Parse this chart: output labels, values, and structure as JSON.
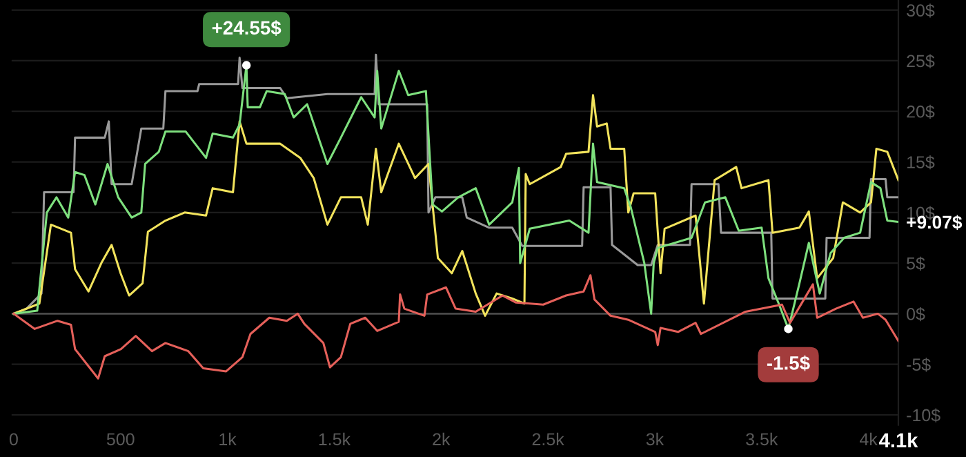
{
  "chart_data": {
    "type": "line",
    "xlim": [
      -10,
      4140
    ],
    "ylim": [
      -11,
      31
    ],
    "xticks": [
      0,
      500,
      {
        "value": 1000,
        "label": "1k"
      },
      {
        "value": 1500,
        "label": "1.5k"
      },
      {
        "value": 2000,
        "label": "2k"
      },
      {
        "value": 2500,
        "label": "2.5k"
      },
      {
        "value": 3000,
        "label": "3k"
      },
      {
        "value": 3500,
        "label": "3.5k"
      },
      {
        "value": 4000,
        "label": "4k"
      },
      {
        "value": 4140,
        "label": "4.1k"
      }
    ],
    "yticks": [
      {
        "value": -10,
        "label": "-10$"
      },
      {
        "value": -5,
        "label": "-5$"
      },
      {
        "value": 0,
        "label": "0$"
      },
      {
        "value": 5,
        "label": "5$"
      },
      {
        "value": 10,
        "label": "10$"
      },
      {
        "value": 15,
        "label": "15$"
      },
      {
        "value": 20,
        "label": "20$"
      },
      {
        "value": 25,
        "label": "25$"
      },
      {
        "value": 30,
        "label": "30$"
      },
      {
        "value": 9.07,
        "label": "+9.07$"
      }
    ],
    "grid": "y",
    "ref_lines": [
      {
        "axis": "y",
        "value": 0,
        "color": "#4a4a4a"
      }
    ],
    "annotations": [
      {
        "text": "+24.55$",
        "x": 1089,
        "y": 24.55
      },
      {
        "text": "-1.5$",
        "x": 3625,
        "y": -1.5
      }
    ],
    "series": [
      {
        "color": "#9a9a9a",
        "x": [
          0,
          60,
          130,
          142,
          280,
          287,
          426,
          445,
          458,
          552,
          597,
          700,
          710,
          860,
          868,
          1050,
          1057,
          1070,
          1247,
          1278,
          1468,
          1689,
          1695,
          1708,
          1935,
          1941,
          1973,
          2099,
          2120,
          2225,
          2333,
          2380,
          2660,
          2667,
          2793,
          2800,
          2920,
          2983,
          3014,
          3165,
          3172,
          3298,
          3310,
          3545,
          3551,
          3798,
          3804,
          4005,
          4012,
          4080,
          4088,
          4140
        ],
        "values": [
          0,
          0.5,
          2,
          12,
          12,
          17.4,
          17.4,
          19,
          12.8,
          12.8,
          18.3,
          18.3,
          22,
          22,
          22.7,
          22.7,
          25.3,
          22.3,
          22.3,
          21.3,
          21.7,
          21.7,
          25.6,
          20.7,
          20.7,
          10,
          11.5,
          11.5,
          9.5,
          8.5,
          8.5,
          6.7,
          6.7,
          12.5,
          12.5,
          6.8,
          4.8,
          4.8,
          6.8,
          6.8,
          12.8,
          12.8,
          8,
          8,
          1.5,
          1.5,
          7.5,
          7.5,
          13.3,
          13.3,
          11.5,
          11.5
        ]
      },
      {
        "color": "#f2e35c",
        "x": [
          0,
          120,
          174,
          268,
          287,
          350,
          410,
          458,
          500,
          540,
          603,
          628,
          710,
          800,
          900,
          931,
          1026,
          1057,
          1089,
          1247,
          1341,
          1404,
          1468,
          1531,
          1626,
          1657,
          1695,
          1720,
          1802,
          1878,
          1941,
          1985,
          2050,
          2099,
          2162,
          2206,
          2260,
          2333,
          2390,
          2396,
          2415,
          2560,
          2585,
          2690,
          2711,
          2730,
          2775,
          2793,
          2857,
          2876,
          2901,
          3002,
          3027,
          3046,
          3191,
          3230,
          3280,
          3381,
          3406,
          3532,
          3551,
          3677,
          3721,
          3760,
          3835,
          3880,
          3961,
          4012,
          4037,
          4088,
          4140
        ],
        "values": [
          0,
          1,
          8.8,
          8,
          4.4,
          2.2,
          5,
          6.8,
          4,
          1.8,
          3,
          8.1,
          9.2,
          10,
          9.7,
          12.4,
          12,
          19,
          16.8,
          16.8,
          15.4,
          13.4,
          8.8,
          11.5,
          11.5,
          8.8,
          16.3,
          12,
          16.8,
          13.4,
          14.8,
          5.5,
          4,
          6.2,
          2,
          -0.2,
          2,
          1.5,
          1,
          13.8,
          12.8,
          14.5,
          15.8,
          16,
          21.6,
          18.5,
          18.8,
          16.3,
          16.3,
          10,
          11.9,
          11.9,
          4,
          8.4,
          9.7,
          1,
          13.2,
          14.5,
          12.4,
          13.2,
          8,
          8.5,
          10.1,
          3.5,
          5.5,
          11,
          10,
          11,
          16.3,
          16,
          13.2
        ]
      },
      {
        "color": "#7ee07e",
        "x": [
          0,
          110,
          155,
          200,
          255,
          287,
          331,
          382,
          439,
          489,
          552,
          597,
          615,
          679,
          710,
          805,
          900,
          931,
          1026,
          1057,
          1089,
          1095,
          1152,
          1184,
          1268,
          1310,
          1373,
          1468,
          1531,
          1626,
          1689,
          1701,
          1720,
          1802,
          1846,
          1929,
          1960,
          2004,
          2080,
          2162,
          2225,
          2333,
          2364,
          2370,
          2415,
          2600,
          2690,
          2711,
          2730,
          2857,
          2888,
          2951,
          2983,
          2995,
          3014,
          3172,
          3235,
          3330,
          3393,
          3500,
          3532,
          3580,
          3625,
          3677,
          3721,
          3772,
          3823,
          3886,
          3961,
          4012,
          4056,
          4088,
          4140
        ],
        "values": [
          0,
          0.3,
          10,
          11.5,
          9.5,
          14,
          13.7,
          10.8,
          14.8,
          11.5,
          9.5,
          10,
          14.8,
          16,
          18,
          18,
          15.4,
          17.8,
          17.4,
          18.7,
          24.55,
          20.4,
          20.4,
          22,
          21.7,
          19.4,
          20.7,
          14.8,
          17.4,
          21.4,
          19.4,
          24,
          18.3,
          24,
          21.6,
          22,
          10.8,
          10.1,
          11.5,
          12.4,
          8.8,
          11,
          14.4,
          5,
          8.4,
          9.2,
          8,
          16.8,
          13,
          12.4,
          10.5,
          5,
          0,
          5,
          6.5,
          7.5,
          11,
          11.5,
          8.2,
          8.5,
          3.5,
          1,
          -1.5,
          3,
          7,
          2,
          6,
          7.5,
          8,
          13,
          12.4,
          9.2,
          9.07
        ]
      },
      {
        "color": "#e5605a",
        "x": [
          0,
          98,
          205,
          268,
          287,
          395,
          426,
          502,
          571,
          647,
          710,
          817,
          887,
          994,
          1070,
          1108,
          1196,
          1278,
          1329,
          1360,
          1449,
          1480,
          1531,
          1575,
          1645,
          1701,
          1802,
          1808,
          1828,
          1922,
          1935,
          2023,
          2068,
          2162,
          2288,
          2351,
          2478,
          2585,
          2667,
          2699,
          2718,
          2793,
          2876,
          3002,
          3014,
          3027,
          3109,
          3191,
          3216,
          3425,
          3595,
          3633,
          3740,
          3760,
          3848,
          3930,
          3974,
          4044,
          4080,
          4140
        ],
        "values": [
          0,
          -1.5,
          -0.7,
          -1.1,
          -3.5,
          -6.4,
          -4.2,
          -3.5,
          -2.2,
          -3.7,
          -2.9,
          -3.7,
          -5.4,
          -5.7,
          -4.3,
          -2,
          -0.4,
          -0.7,
          0,
          -1,
          -2.9,
          -5.3,
          -4.3,
          -1,
          -0.4,
          -1.7,
          -0.8,
          1.9,
          0.5,
          -0.2,
          1.9,
          2.6,
          0.5,
          0.2,
          1.8,
          1.1,
          0.9,
          1.8,
          2.2,
          3.8,
          1.4,
          -0.2,
          -0.6,
          -1.8,
          -3.1,
          -1.4,
          -1.8,
          -0.9,
          -2,
          0.2,
          0.9,
          -0.9,
          2.9,
          -0.4,
          0.5,
          1.2,
          -0.4,
          0,
          -0.6,
          -2.7
        ]
      }
    ]
  }
}
